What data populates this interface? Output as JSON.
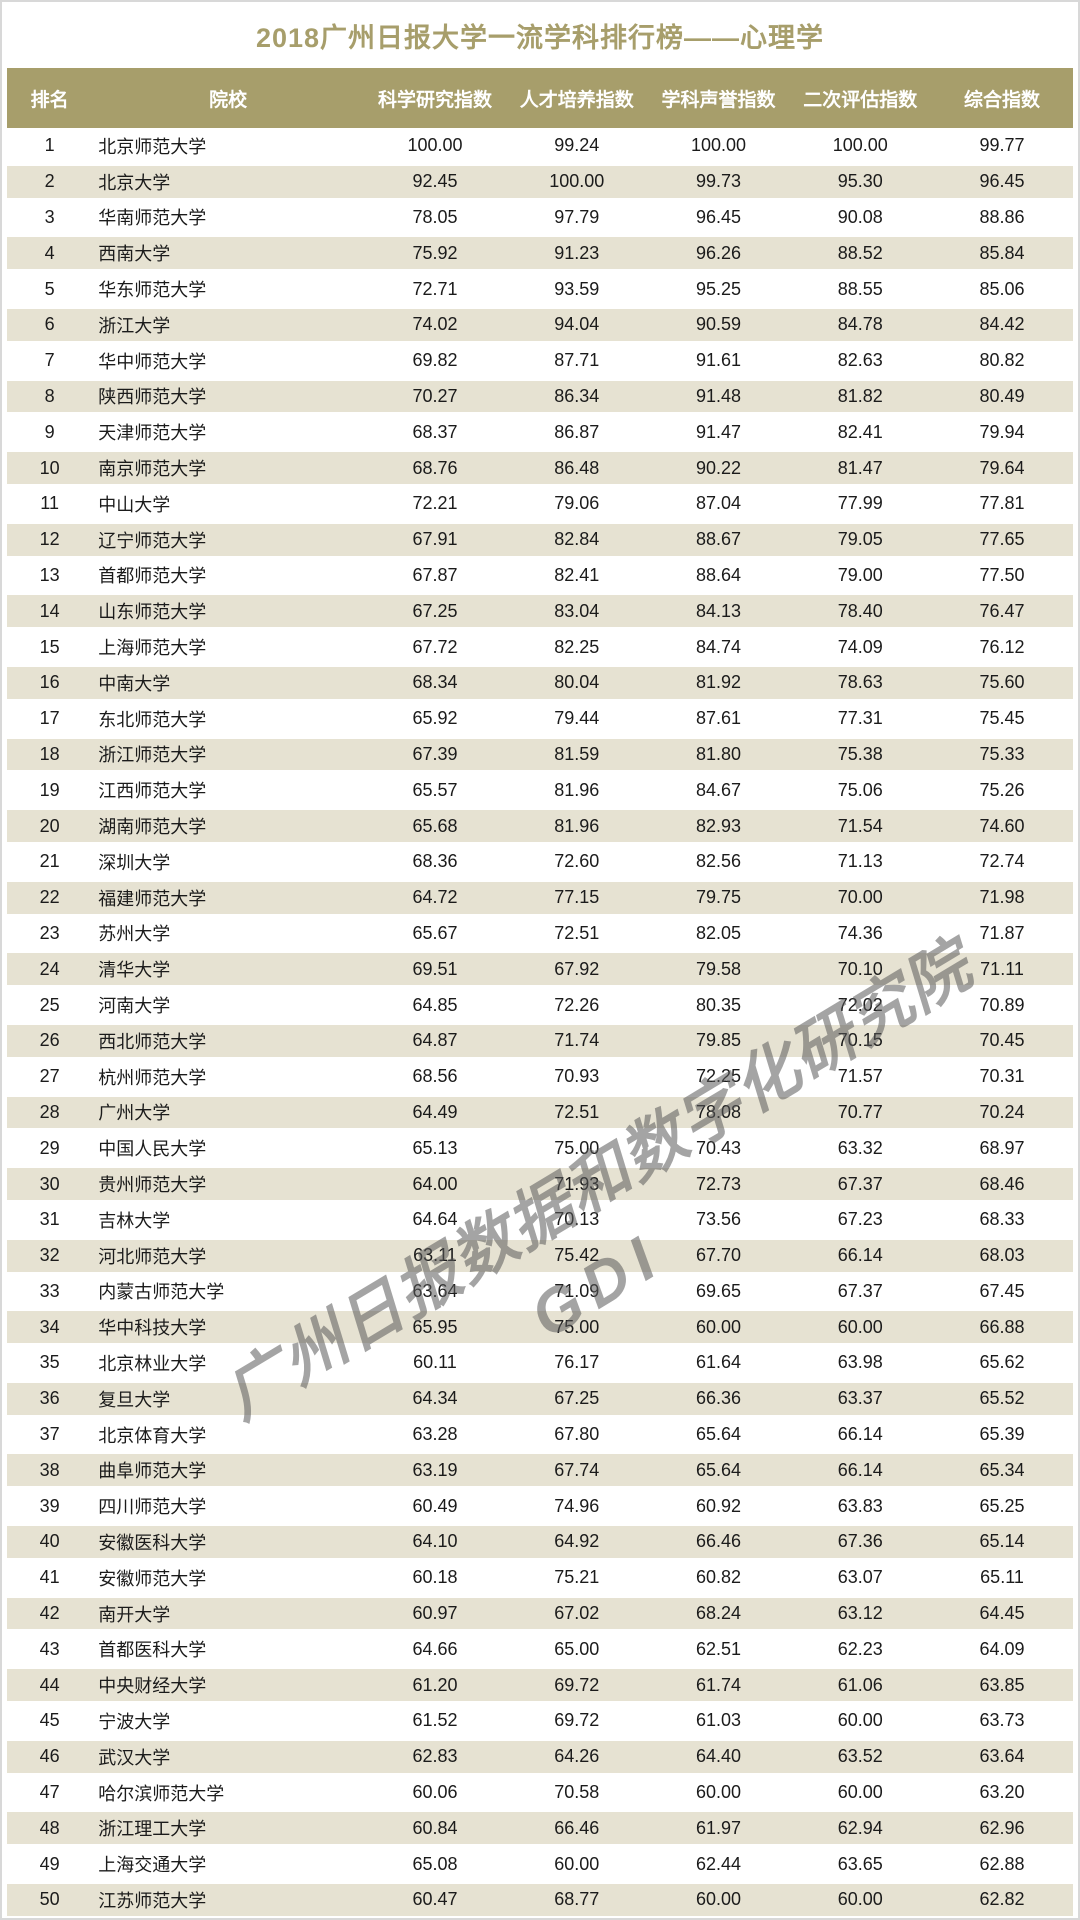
{
  "title": "2018广州日报大学一流学科排行榜——心理学",
  "watermark": {
    "line1": "广州日报数据和数字化研究院",
    "line2": "GDI"
  },
  "colors": {
    "accent_olive": "#a79e6b",
    "row_alt": "#e6e2d2",
    "row_plain": "#ffffff",
    "header_text": "#ffffff",
    "body_text": "#1b1b1b",
    "watermark_gray": "#5a5a5a",
    "page_border": "#d8d8d8"
  },
  "chart_data": {
    "type": "table",
    "title": "2018广州日报大学一流学科排行榜——心理学",
    "columns": [
      "排名",
      "院校",
      "科学研究指数",
      "人才培养指数",
      "学科声誉指数",
      "二次评估指数",
      "综合指数"
    ],
    "rows": [
      [
        "1",
        "北京师范大学",
        "100.00",
        "99.24",
        "100.00",
        "100.00",
        "99.77"
      ],
      [
        "2",
        "北京大学",
        "92.45",
        "100.00",
        "99.73",
        "95.30",
        "96.45"
      ],
      [
        "3",
        "华南师范大学",
        "78.05",
        "97.79",
        "96.45",
        "90.08",
        "88.86"
      ],
      [
        "4",
        "西南大学",
        "75.92",
        "91.23",
        "96.26",
        "88.52",
        "85.84"
      ],
      [
        "5",
        "华东师范大学",
        "72.71",
        "93.59",
        "95.25",
        "88.55",
        "85.06"
      ],
      [
        "6",
        "浙江大学",
        "74.02",
        "94.04",
        "90.59",
        "84.78",
        "84.42"
      ],
      [
        "7",
        "华中师范大学",
        "69.82",
        "87.71",
        "91.61",
        "82.63",
        "80.82"
      ],
      [
        "8",
        "陕西师范大学",
        "70.27",
        "86.34",
        "91.48",
        "81.82",
        "80.49"
      ],
      [
        "9",
        "天津师范大学",
        "68.37",
        "86.87",
        "91.47",
        "82.41",
        "79.94"
      ],
      [
        "10",
        "南京师范大学",
        "68.76",
        "86.48",
        "90.22",
        "81.47",
        "79.64"
      ],
      [
        "11",
        "中山大学",
        "72.21",
        "79.06",
        "87.04",
        "77.99",
        "77.81"
      ],
      [
        "12",
        "辽宁师范大学",
        "67.91",
        "82.84",
        "88.67",
        "79.05",
        "77.65"
      ],
      [
        "13",
        "首都师范大学",
        "67.87",
        "82.41",
        "88.64",
        "79.00",
        "77.50"
      ],
      [
        "14",
        "山东师范大学",
        "67.25",
        "83.04",
        "84.13",
        "78.40",
        "76.47"
      ],
      [
        "15",
        "上海师范大学",
        "67.72",
        "82.25",
        "84.74",
        "74.09",
        "76.12"
      ],
      [
        "16",
        "中南大学",
        "68.34",
        "80.04",
        "81.92",
        "78.63",
        "75.60"
      ],
      [
        "17",
        "东北师范大学",
        "65.92",
        "79.44",
        "87.61",
        "77.31",
        "75.45"
      ],
      [
        "18",
        "浙江师范大学",
        "67.39",
        "81.59",
        "81.80",
        "75.38",
        "75.33"
      ],
      [
        "19",
        "江西师范大学",
        "65.57",
        "81.96",
        "84.67",
        "75.06",
        "75.26"
      ],
      [
        "20",
        "湖南师范大学",
        "65.68",
        "81.96",
        "82.93",
        "71.54",
        "74.60"
      ],
      [
        "21",
        "深圳大学",
        "68.36",
        "72.60",
        "82.56",
        "71.13",
        "72.74"
      ],
      [
        "22",
        "福建师范大学",
        "64.72",
        "77.15",
        "79.75",
        "70.00",
        "71.98"
      ],
      [
        "23",
        "苏州大学",
        "65.67",
        "72.51",
        "82.05",
        "74.36",
        "71.87"
      ],
      [
        "24",
        "清华大学",
        "69.51",
        "67.92",
        "79.58",
        "70.10",
        "71.11"
      ],
      [
        "25",
        "河南大学",
        "64.85",
        "72.26",
        "80.35",
        "72.02",
        "70.89"
      ],
      [
        "26",
        "西北师范大学",
        "64.87",
        "71.74",
        "79.85",
        "70.15",
        "70.45"
      ],
      [
        "27",
        "杭州师范大学",
        "68.56",
        "70.93",
        "72.25",
        "71.57",
        "70.31"
      ],
      [
        "28",
        "广州大学",
        "64.49",
        "72.51",
        "78.08",
        "70.77",
        "70.24"
      ],
      [
        "29",
        "中国人民大学",
        "65.13",
        "75.00",
        "70.43",
        "63.32",
        "68.97"
      ],
      [
        "30",
        "贵州师范大学",
        "64.00",
        "71.93",
        "72.73",
        "67.37",
        "68.46"
      ],
      [
        "31",
        "吉林大学",
        "64.64",
        "70.13",
        "73.56",
        "67.23",
        "68.33"
      ],
      [
        "32",
        "河北师范大学",
        "63.11",
        "75.42",
        "67.70",
        "66.14",
        "68.03"
      ],
      [
        "33",
        "内蒙古师范大学",
        "63.64",
        "71.09",
        "69.65",
        "67.37",
        "67.45"
      ],
      [
        "34",
        "华中科技大学",
        "65.95",
        "75.00",
        "60.00",
        "60.00",
        "66.88"
      ],
      [
        "35",
        "北京林业大学",
        "60.11",
        "76.17",
        "61.64",
        "63.98",
        "65.62"
      ],
      [
        "36",
        "复旦大学",
        "64.34",
        "67.25",
        "66.36",
        "63.37",
        "65.52"
      ],
      [
        "37",
        "北京体育大学",
        "63.28",
        "67.80",
        "65.64",
        "66.14",
        "65.39"
      ],
      [
        "38",
        "曲阜师范大学",
        "63.19",
        "67.74",
        "65.64",
        "66.14",
        "65.34"
      ],
      [
        "39",
        "四川师范大学",
        "60.49",
        "74.96",
        "60.92",
        "63.83",
        "65.25"
      ],
      [
        "40",
        "安徽医科大学",
        "64.10",
        "64.92",
        "66.46",
        "67.36",
        "65.14"
      ],
      [
        "41",
        "安徽师范大学",
        "60.18",
        "75.21",
        "60.82",
        "63.07",
        "65.11"
      ],
      [
        "42",
        "南开大学",
        "60.97",
        "67.02",
        "68.24",
        "63.12",
        "64.45"
      ],
      [
        "43",
        "首都医科大学",
        "64.66",
        "65.00",
        "62.51",
        "62.23",
        "64.09"
      ],
      [
        "44",
        "中央财经大学",
        "61.20",
        "69.72",
        "61.74",
        "61.06",
        "63.85"
      ],
      [
        "45",
        "宁波大学",
        "61.52",
        "69.72",
        "61.03",
        "60.00",
        "63.73"
      ],
      [
        "46",
        "武汉大学",
        "62.83",
        "64.26",
        "64.40",
        "63.52",
        "63.64"
      ],
      [
        "47",
        "哈尔滨师范大学",
        "60.06",
        "70.58",
        "60.00",
        "60.00",
        "63.20"
      ],
      [
        "48",
        "浙江理工大学",
        "60.84",
        "66.46",
        "61.97",
        "62.94",
        "62.96"
      ],
      [
        "49",
        "上海交通大学",
        "65.08",
        "60.00",
        "62.44",
        "63.65",
        "62.88"
      ],
      [
        "50",
        "江苏师范大学",
        "60.47",
        "68.77",
        "60.00",
        "60.00",
        "62.82"
      ]
    ]
  }
}
